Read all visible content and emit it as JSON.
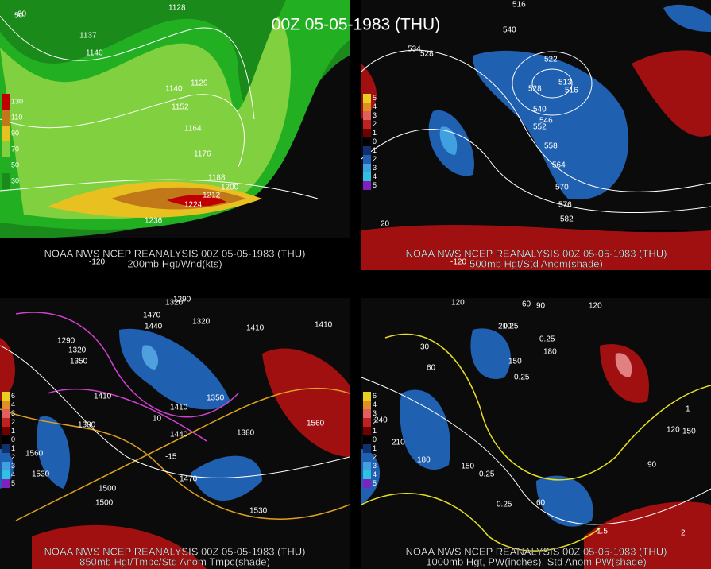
{
  "title": "00Z 05-05-1983 (THU)",
  "panels": [
    {
      "caption": "NOAA NWS NCEP REANALYSIS 00Z 05-05-1983 (THU)",
      "subtitle": "200mb Hgt/Wnd(kts)",
      "legend": [
        "130",
        "110",
        "90",
        "70",
        "50",
        "30"
      ],
      "labels": [
        "60",
        "50",
        "1128",
        "1137",
        "1140",
        "1140",
        "1129",
        "1152",
        "1164",
        "1176",
        "1188",
        "1200",
        "1212",
        "1224",
        "1236",
        "-120"
      ]
    },
    {
      "caption": "NOAA NWS NCEP REANALYSIS 00Z 05-05-1983 (THU)",
      "subtitle": "500mb Hgt/Std Anom(shade)",
      "legend": [
        "5",
        "4",
        "3",
        "2",
        "1",
        "0",
        "1",
        "2",
        "3",
        "4",
        "5"
      ],
      "labels": [
        "516",
        "540",
        "534",
        "528",
        "522",
        "513",
        "516",
        "528",
        "540",
        "546",
        "552",
        "558",
        "564",
        "570",
        "576",
        "582",
        "20",
        "-120"
      ]
    },
    {
      "caption": "NOAA NWS NCEP REANALYSIS 00Z 05-05-1983 (THU)",
      "subtitle": "850mb Hgt/Tmpc/Std Anom Tmpc(shade)",
      "legend": [
        "6",
        "4",
        "3",
        "2",
        "1",
        "0",
        "1",
        "2",
        "3",
        "4",
        "5"
      ],
      "labels": [
        "1290",
        "1320",
        "1440",
        "1470",
        "1320",
        "1410",
        "1290",
        "1320",
        "1350",
        "1350",
        "1410",
        "1410",
        "1380",
        "1380",
        "10",
        "1440",
        "-15",
        "1470",
        "1500",
        "1530",
        "1560",
        "1560",
        "1530",
        "1410",
        "1500"
      ]
    },
    {
      "caption": "NOAA NWS NCEP REANALYSIS 00Z 05-05-1983 (THU)",
      "subtitle": "1000mb Hgt, PW(inches), Std Anom PW(shade)",
      "legend": [
        "6",
        "4",
        "3",
        "2",
        "1",
        "0",
        "1",
        "2",
        "3",
        "4",
        "5"
      ],
      "labels": [
        "120",
        "60",
        "90",
        "120",
        "30",
        "210",
        "0.25",
        "180",
        "0.25",
        "60",
        "0.25",
        "240",
        "210",
        "180",
        "-150",
        "150",
        "0.25",
        "60",
        "120",
        "90",
        "0.25",
        "1.5",
        "2",
        "1",
        "150"
      ]
    }
  ]
}
